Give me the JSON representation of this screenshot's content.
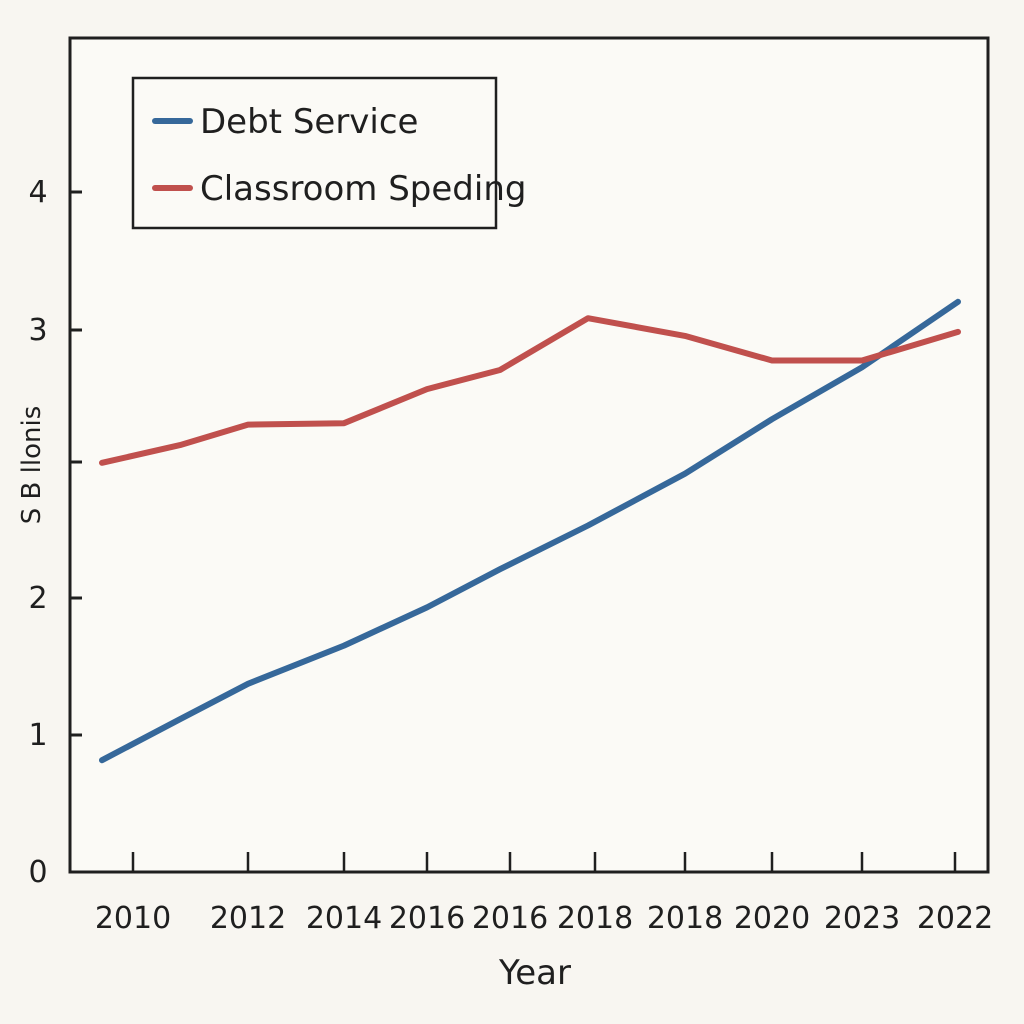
{
  "chart_data": {
    "type": "line",
    "xlabel": "Year",
    "ylabel": "S B llonis",
    "x_tick_labels": [
      "2010",
      "2012",
      "2014",
      "2016",
      "2016",
      "2018",
      "2018",
      "2020",
      "2023",
      "2022"
    ],
    "y_ticks": [
      "0",
      "1",
      "",
      "2",
      "",
      "3",
      "4"
    ],
    "ylim": [
      0,
      5
    ],
    "grid": false,
    "legend_position": "top-left",
    "series": [
      {
        "name": "Debt Service",
        "color": "#36689a",
        "points": [
          [
            0,
            0.82
          ],
          [
            1,
            1.12
          ],
          [
            2,
            1.38
          ],
          [
            3,
            1.66
          ],
          [
            4,
            1.94
          ],
          [
            5,
            2.22
          ],
          [
            6,
            2.54
          ],
          [
            7,
            2.92
          ],
          [
            8,
            3.32
          ],
          [
            9,
            3.7
          ],
          [
            10,
            4.18
          ]
        ]
      },
      {
        "name": "Classroom Speding",
        "color": "#c0504d",
        "points": [
          [
            0,
            3.0
          ],
          [
            1,
            3.13
          ],
          [
            2,
            3.28
          ],
          [
            3,
            3.29
          ],
          [
            4,
            3.54
          ],
          [
            5,
            3.68
          ],
          [
            6,
            4.06
          ],
          [
            7,
            3.93
          ],
          [
            8,
            3.75
          ],
          [
            9,
            3.75
          ],
          [
            10,
            3.96
          ]
        ]
      }
    ]
  }
}
